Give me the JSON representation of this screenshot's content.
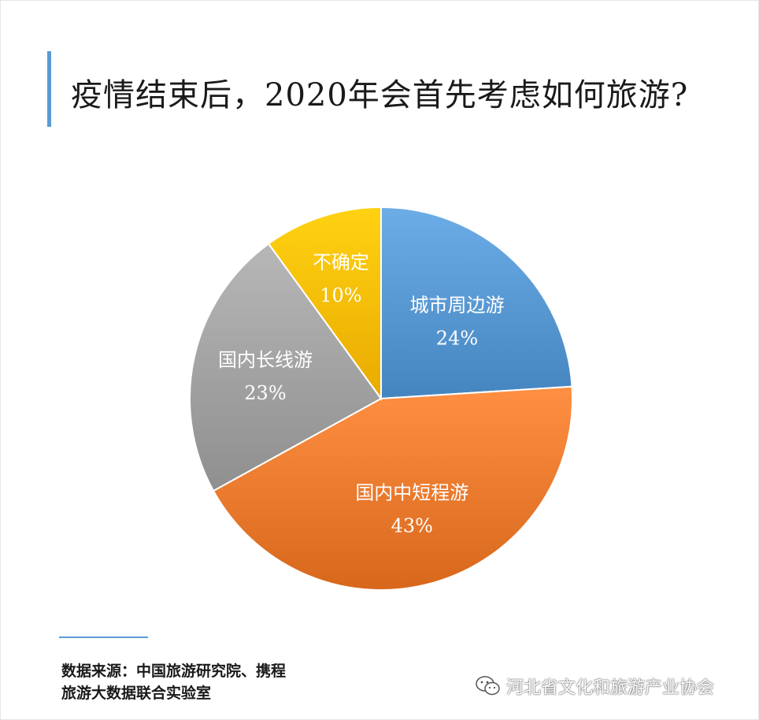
{
  "title": "疫情结束后，2020年会首先考虑如何旅游?",
  "chart_data": {
    "type": "pie",
    "slices": [
      {
        "label": "城市周边游",
        "value": 24,
        "value_label": "24%",
        "color": "#5b9bd5"
      },
      {
        "label": "国内中短程游",
        "value": 43,
        "value_label": "43%",
        "color": "#ed7d31"
      },
      {
        "label": "国内长线游",
        "value": 23,
        "value_label": "23%",
        "color": "#a5a5a5"
      },
      {
        "label": "不确定",
        "value": 10,
        "value_label": "10%",
        "color": "#ffc000"
      }
    ]
  },
  "source": {
    "line1": "数据来源：中国旅游研究院、携程",
    "line2": "旅游大数据联合实验室"
  },
  "watermark": {
    "text": "河北省文化和旅游产业协会",
    "icon": "wechat-icon"
  }
}
